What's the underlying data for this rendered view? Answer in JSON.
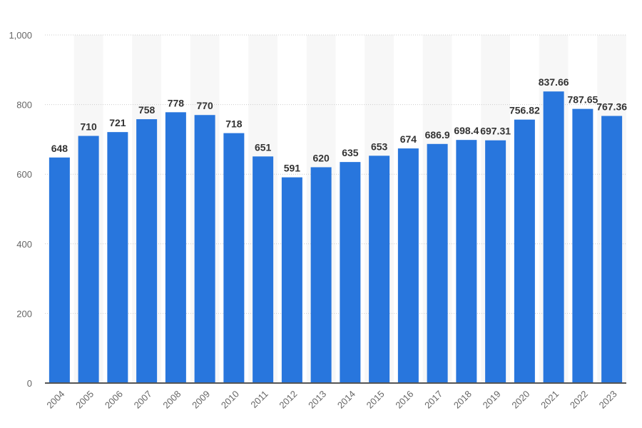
{
  "chart_data": {
    "type": "bar",
    "title": "",
    "xlabel": "",
    "ylabel": "",
    "ylim": [
      0,
      1000
    ],
    "yticks": [
      "0",
      "200",
      "400",
      "600",
      "800",
      "1,000"
    ],
    "ytick_values": [
      0,
      200,
      400,
      600,
      800,
      1000
    ],
    "grid": true,
    "categories": [
      "2004",
      "2005",
      "2006",
      "2007",
      "2008",
      "2009",
      "2010",
      "2011",
      "2012",
      "2013",
      "2014",
      "2015",
      "2016",
      "2017",
      "2018",
      "2019",
      "2020",
      "2021",
      "2022",
      "2023"
    ],
    "values": [
      648,
      710,
      721,
      758,
      778,
      770,
      718,
      651,
      591,
      620,
      635,
      653,
      674,
      686.9,
      698.4,
      697.31,
      756.82,
      837.66,
      787.65,
      767.36
    ],
    "data_labels": [
      "648",
      "710",
      "721",
      "758",
      "778",
      "770",
      "718",
      "651",
      "591",
      "620",
      "635",
      "653",
      "674",
      "686.9",
      "698.4",
      "697.31",
      "756.82",
      "837.66",
      "787.65",
      "767.36"
    ],
    "colors": {
      "bar": "#2876dd",
      "band": "#f7f7f7",
      "grid": "#cccccc",
      "axis": "#555555"
    }
  }
}
